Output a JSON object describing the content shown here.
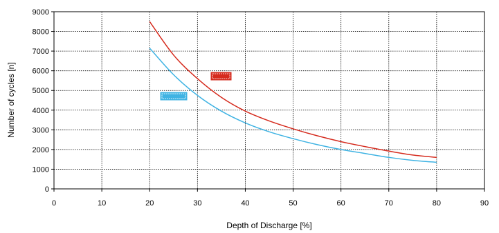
{
  "chart_data": {
    "type": "line",
    "title": "",
    "xlabel": "Depth of Discharge [%]",
    "ylabel": "Number of cycles [n]",
    "xlim": [
      0,
      90
    ],
    "ylim": [
      0,
      9000
    ],
    "x_ticks": [
      0,
      10,
      20,
      30,
      40,
      50,
      60,
      70,
      80,
      90
    ],
    "y_ticks": [
      0,
      1000,
      2000,
      3000,
      4000,
      5000,
      6000,
      7000,
      8000,
      9000
    ],
    "grid": true,
    "series": [
      {
        "color": "#d52b1e",
        "tag_text": "",
        "x": [
          20,
          25,
          30,
          35,
          40,
          45,
          50,
          55,
          60,
          65,
          70,
          75,
          80
        ],
        "values": [
          8500,
          6800,
          5600,
          4650,
          3950,
          3450,
          3050,
          2700,
          2400,
          2150,
          1920,
          1720,
          1600
        ]
      },
      {
        "color": "#3fb3e3",
        "tag_text": "",
        "x": [
          20,
          25,
          30,
          35,
          40,
          45,
          50,
          55,
          60,
          65,
          70,
          75,
          80
        ],
        "values": [
          7150,
          5800,
          4750,
          3950,
          3350,
          2900,
          2550,
          2250,
          2000,
          1800,
          1600,
          1450,
          1350
        ]
      }
    ]
  }
}
